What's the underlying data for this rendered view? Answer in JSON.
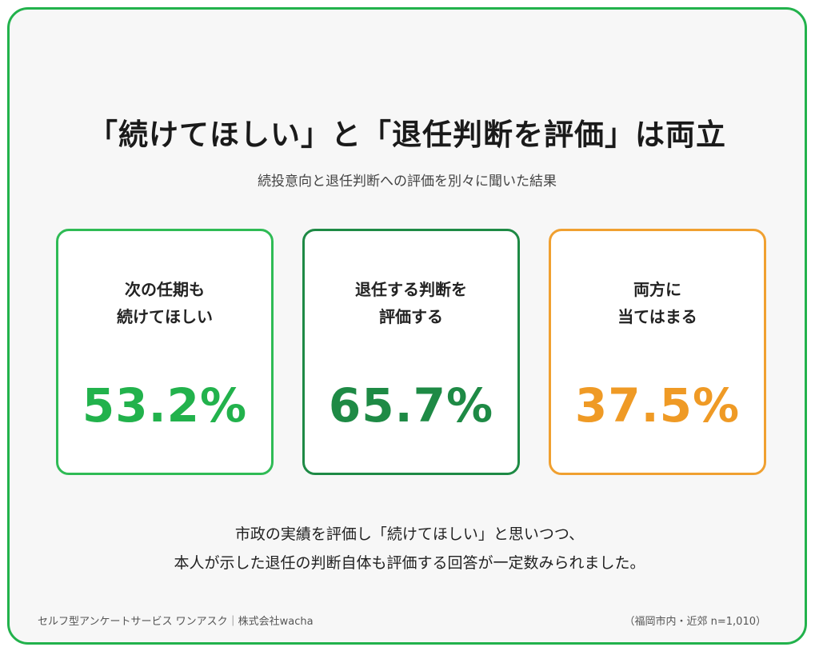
{
  "header": {
    "title": "「続けてほしい」と「退任判断を評価」は両立",
    "subtitle": "続投意向と退任判断への評価を別々に聞いた結果"
  },
  "cards": [
    {
      "label_line1": "次の任期も",
      "label_line2": "続けてほしい",
      "value": "53.2%",
      "color": "#22b24c"
    },
    {
      "label_line1": "退任する判断を",
      "label_line2": "評価する",
      "value": "65.7%",
      "color": "#1e8a45"
    },
    {
      "label_line1": "両方に",
      "label_line2": "当てはまる",
      "value": "37.5%",
      "color": "#ef9a25"
    }
  ],
  "note": {
    "line1": "市政の実績を評価し「続けてほしい」と思いつつ、",
    "line2": "本人が示した退任の判断自体も評価する回答が一定数みられました。"
  },
  "footer": {
    "credit": "セルフ型アンケートサービス ワンアスク｜株式会社wacha",
    "sample": "（福岡市内・近郊 n=1,010）"
  },
  "colors": {
    "frame_border": "#22b24c",
    "background": "#f7f7f7"
  }
}
